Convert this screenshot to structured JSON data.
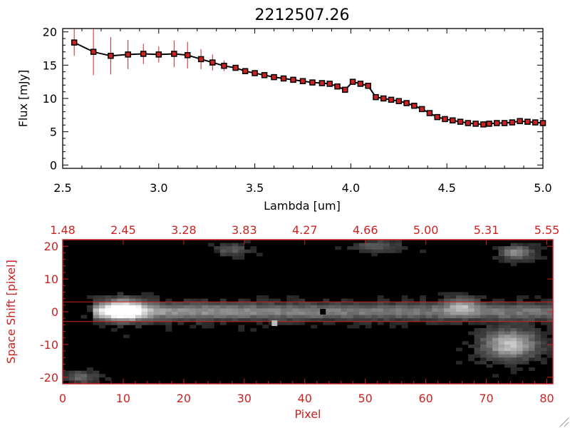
{
  "chart_data": [
    {
      "type": "line",
      "title": "2212507.26",
      "xlabel": "Lambda [um]",
      "ylabel": "Flux [mJy]",
      "xlim": [
        2.5,
        5.0
      ],
      "ylim": [
        -0.5,
        20.5
      ],
      "xticks": [
        "2.5",
        "3.0",
        "3.5",
        "4.0",
        "4.5",
        "5.0"
      ],
      "yticks": [
        "0",
        "5",
        "10",
        "15",
        "20"
      ],
      "grid": false,
      "series": [
        {
          "color": "#000000",
          "marker_color": "#cc2222",
          "errorbar_color": "#cc2222",
          "x": [
            2.56,
            2.66,
            2.75,
            2.84,
            2.92,
            3.0,
            3.08,
            3.15,
            3.22,
            3.28,
            3.34,
            3.4,
            3.45,
            3.5,
            3.55,
            3.6,
            3.65,
            3.7,
            3.75,
            3.8,
            3.85,
            3.89,
            3.93,
            3.97,
            4.01,
            4.05,
            4.09,
            4.13,
            4.17,
            4.21,
            4.25,
            4.29,
            4.33,
            4.37,
            4.41,
            4.45,
            4.49,
            4.53,
            4.57,
            4.61,
            4.65,
            4.69,
            4.72,
            4.76,
            4.8,
            4.84,
            4.88,
            4.92,
            4.96,
            5.0
          ],
          "y": [
            18.4,
            17.0,
            16.4,
            16.6,
            16.7,
            16.6,
            16.7,
            16.5,
            15.9,
            15.4,
            14.9,
            14.6,
            14.1,
            13.8,
            13.5,
            13.2,
            13.0,
            12.8,
            12.6,
            12.4,
            12.3,
            12.2,
            11.8,
            11.3,
            12.5,
            12.2,
            11.9,
            10.2,
            10.0,
            9.8,
            9.6,
            9.3,
            8.9,
            8.4,
            7.8,
            7.2,
            6.9,
            6.7,
            6.5,
            6.3,
            6.2,
            6.1,
            6.2,
            6.3,
            6.3,
            6.4,
            6.6,
            6.5,
            6.4,
            6.3
          ],
          "yerr": [
            2.0,
            3.5,
            2.8,
            2.2,
            1.5,
            1.2,
            2.0,
            2.0,
            1.5,
            1.2,
            0.8,
            0.4,
            0.3,
            0.3,
            0.3,
            0.3,
            0.3,
            0.3,
            0.3,
            0.3,
            0.3,
            0.3,
            0.3,
            0.3,
            0.3,
            0.3,
            0.3,
            0.3,
            0.3,
            0.3,
            0.3,
            0.3,
            0.3,
            0.3,
            0.3,
            0.3,
            0.3,
            0.3,
            0.3,
            0.3,
            0.3,
            0.3,
            0.3,
            0.3,
            0.3,
            0.3,
            0.3,
            0.3,
            0.3,
            0.3
          ]
        }
      ]
    },
    {
      "type": "heatmap",
      "xlabel": "Pixel",
      "ylabel": "Space Shift [pixel]",
      "xlim": [
        0,
        81
      ],
      "ylim": [
        -22,
        22
      ],
      "xticks": [
        "0",
        "10",
        "20",
        "30",
        "40",
        "50",
        "60",
        "70",
        "80"
      ],
      "yticks": [
        "-20",
        "-10",
        "0",
        "10",
        "20"
      ],
      "top_axis_ticks": [
        "1.48",
        "2.45",
        "3.28",
        "3.83",
        "4.27",
        "4.66",
        "5.00",
        "5.31",
        "5.55"
      ],
      "extraction_lines_y": [
        3,
        -3
      ],
      "axis_color": "#cc2222",
      "colormap": "grayscale",
      "features": [
        {
          "kind": "trace",
          "x_start": 6,
          "x_end": 81,
          "y": 0,
          "width": 3.5,
          "intensity": 0.55
        },
        {
          "kind": "blob",
          "x": 10,
          "y": 0.5,
          "rx": 4,
          "ry": 3.5,
          "intensity": 1.0
        },
        {
          "kind": "blob",
          "x": 74,
          "y": -10,
          "rx": 5,
          "ry": 5,
          "intensity": 0.75
        },
        {
          "kind": "blob",
          "x": 75,
          "y": 18,
          "rx": 3,
          "ry": 2.5,
          "intensity": 0.5
        },
        {
          "kind": "blob",
          "x": 66,
          "y": 2,
          "rx": 3,
          "ry": 3,
          "intensity": 0.45
        },
        {
          "kind": "blob",
          "x": 3,
          "y": -20,
          "rx": 3,
          "ry": 2,
          "intensity": 0.35
        },
        {
          "kind": "blob",
          "x": 28,
          "y": 19,
          "rx": 3,
          "ry": 2,
          "intensity": 0.3
        },
        {
          "kind": "blob",
          "x": 52,
          "y": 20,
          "rx": 4,
          "ry": 2,
          "intensity": 0.3
        }
      ],
      "markers": [
        {
          "x": 43,
          "y": 0,
          "color": "#000000"
        },
        {
          "x": 35,
          "y": -3.5,
          "color": "#bbbbbb"
        }
      ]
    }
  ]
}
